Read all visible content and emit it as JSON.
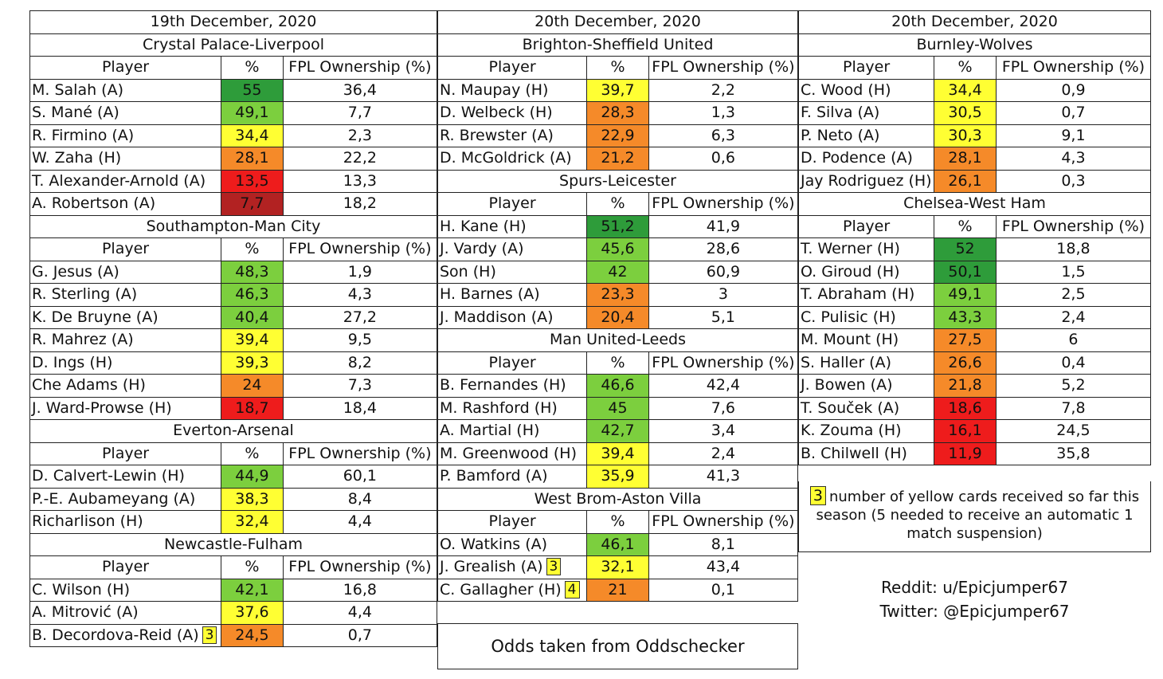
{
  "colors": {
    "dark_green": "#2e9c3a",
    "light_green": "#7ccf3e",
    "yellow": "#ffff33",
    "orange": "#f58a29",
    "red": "#ee1c1c",
    "dark_red": "#b22222"
  },
  "col_headers": {
    "player": "Player",
    "pct": "%",
    "own": "FPL Ownership (%)"
  },
  "columns": [
    {
      "id": "col1",
      "date": "19th December, 2020",
      "fixtures": [
        {
          "name": "Crystal Palace-Liverpool",
          "players": [
            {
              "name": "M. Salah (A)",
              "pct": "55",
              "own": "36,4",
              "color": "dark_green"
            },
            {
              "name": "S. Mané (A)",
              "pct": "49,1",
              "own": "7,7",
              "color": "light_green"
            },
            {
              "name": "R. Firmino (A)",
              "pct": "34,4",
              "own": "2,3",
              "color": "yellow"
            },
            {
              "name": "W. Zaha (H)",
              "pct": "28,1",
              "own": "22,2",
              "color": "orange"
            },
            {
              "name": "T. Alexander-Arnold (A)",
              "pct": "13,5",
              "own": "13,3",
              "color": "red"
            },
            {
              "name": "A. Robertson (A)",
              "pct": "7,7",
              "own": "18,2",
              "color": "dark_red"
            }
          ]
        },
        {
          "name": "Southampton-Man City",
          "players": [
            {
              "name": "G. Jesus (A)",
              "pct": "48,3",
              "own": "1,9",
              "color": "light_green"
            },
            {
              "name": "R. Sterling (A)",
              "pct": "46,3",
              "own": "4,3",
              "color": "light_green"
            },
            {
              "name": "K. De Bruyne (A)",
              "pct": "40,4",
              "own": "27,2",
              "color": "light_green"
            },
            {
              "name": "R. Mahrez (A)",
              "pct": "39,4",
              "own": "9,5",
              "color": "yellow"
            },
            {
              "name": "D. Ings (H)",
              "pct": "39,3",
              "own": "8,2",
              "color": "yellow"
            },
            {
              "name": "Che Adams (H)",
              "pct": "24",
              "own": "7,3",
              "color": "orange"
            },
            {
              "name": "J. Ward-Prowse (H)",
              "pct": "18,7",
              "own": "18,4",
              "color": "red"
            }
          ]
        },
        {
          "name": "Everton-Arsenal",
          "players": [
            {
              "name": "D. Calvert-Lewin (H)",
              "pct": "44,9",
              "own": "60,1",
              "color": "light_green"
            },
            {
              "name": "P.-E. Aubameyang (A)",
              "pct": "38,3",
              "own": "8,4",
              "color": "yellow"
            },
            {
              "name": "Richarlison (H)",
              "pct": "32,4",
              "own": "4,4",
              "color": "yellow"
            }
          ]
        },
        {
          "name": "Newcastle-Fulham",
          "players": [
            {
              "name": "C. Wilson (H)",
              "pct": "42,1",
              "own": "16,8",
              "color": "light_green"
            },
            {
              "name": "A. Mitrović (A)",
              "pct": "37,6",
              "own": "4,4",
              "color": "yellow"
            },
            {
              "name": "B. Decordova-Reid (A)",
              "badge": "3",
              "pct": "24,5",
              "own": "0,7",
              "color": "orange"
            }
          ]
        }
      ]
    },
    {
      "id": "col2",
      "date": "20th December, 2020",
      "fixtures": [
        {
          "name": "Brighton-Sheffield United",
          "players": [
            {
              "name": "N. Maupay (H)",
              "pct": "39,7",
              "own": "2,2",
              "color": "yellow"
            },
            {
              "name": "D. Welbeck (H)",
              "pct": "28,3",
              "own": "1,3",
              "color": "orange"
            },
            {
              "name": "R. Brewster (A)",
              "pct": "22,9",
              "own": "6,3",
              "color": "orange"
            },
            {
              "name": "D. McGoldrick (A)",
              "pct": "21,2",
              "own": "0,6",
              "color": "orange"
            }
          ]
        },
        {
          "name": "Spurs-Leicester",
          "players": [
            {
              "name": "H. Kane (H)",
              "pct": "51,2",
              "own": "41,9",
              "color": "dark_green"
            },
            {
              "name": "J. Vardy (A)",
              "pct": "45,6",
              "own": "28,6",
              "color": "light_green"
            },
            {
              "name": "Son (H)",
              "pct": "42",
              "own": "60,9",
              "color": "light_green"
            },
            {
              "name": "H. Barnes (A)",
              "pct": "23,3",
              "own": "3",
              "color": "orange"
            },
            {
              "name": "J. Maddison (A)",
              "pct": "20,4",
              "own": "5,1",
              "color": "orange"
            }
          ]
        },
        {
          "name": "Man United-Leeds",
          "players": [
            {
              "name": "B. Fernandes (H)",
              "pct": "46,6",
              "own": "42,4",
              "color": "light_green"
            },
            {
              "name": "M. Rashford (H)",
              "pct": "45",
              "own": "7,6",
              "color": "light_green"
            },
            {
              "name": "A. Martial (H)",
              "pct": "42,7",
              "own": "3,4",
              "color": "light_green"
            },
            {
              "name": "M. Greenwood (H)",
              "pct": "39,4",
              "own": "2,4",
              "color": "yellow"
            },
            {
              "name": "P. Bamford (A)",
              "pct": "35,9",
              "own": "41,3",
              "color": "yellow"
            }
          ]
        },
        {
          "name": "West Brom-Aston Villa",
          "players": [
            {
              "name": "O. Watkins (A)",
              "pct": "46,1",
              "own": "8,1",
              "color": "light_green"
            },
            {
              "name": "J. Grealish (A)",
              "badge": "3",
              "pct": "32,1",
              "own": "43,4",
              "color": "yellow"
            },
            {
              "name": "C. Gallagher (H)",
              "badge": "4",
              "pct": "21",
              "own": "0,1",
              "color": "orange"
            }
          ]
        }
      ]
    },
    {
      "id": "col3",
      "date": "20th December, 2020",
      "fixtures": [
        {
          "name": "Burnley-Wolves",
          "players": [
            {
              "name": "C. Wood (H)",
              "pct": "34,4",
              "own": "0,9",
              "color": "yellow"
            },
            {
              "name": "F. Silva (A)",
              "pct": "30,5",
              "own": "0,7",
              "color": "yellow"
            },
            {
              "name": "P. Neto (A)",
              "pct": "30,3",
              "own": "9,1",
              "color": "yellow"
            },
            {
              "name": "D. Podence (A)",
              "pct": "28,1",
              "own": "4,3",
              "color": "orange"
            },
            {
              "name": "Jay Rodriguez (H)",
              "pct": "26,1",
              "own": "0,3",
              "color": "orange"
            }
          ]
        },
        {
          "name": "Chelsea-West Ham",
          "players": [
            {
              "name": "T. Werner (H)",
              "pct": "52",
              "own": "18,8",
              "color": "dark_green"
            },
            {
              "name": "O. Giroud (H)",
              "pct": "50,1",
              "own": "1,5",
              "color": "dark_green"
            },
            {
              "name": "T. Abraham (H)",
              "pct": "49,1",
              "own": "2,5",
              "color": "light_green"
            },
            {
              "name": "C. Pulisic (H)",
              "pct": "43,3",
              "own": "2,4",
              "color": "light_green"
            },
            {
              "name": "M. Mount (H)",
              "pct": "27,5",
              "own": "6",
              "color": "orange"
            },
            {
              "name": "S. Haller (A)",
              "pct": "26,6",
              "own": "0,4",
              "color": "orange"
            },
            {
              "name": "J. Bowen (A)",
              "pct": "21,8",
              "own": "5,2",
              "color": "orange"
            },
            {
              "name": "T. Souček (A)",
              "pct": "18,6",
              "own": "7,8",
              "color": "red"
            },
            {
              "name": "K. Zouma (H)",
              "pct": "16,1",
              "own": "24,5",
              "color": "red"
            },
            {
              "name": "B. Chilwell (H)",
              "pct": "11,9",
              "own": "35,8",
              "color": "red"
            }
          ]
        }
      ]
    }
  ],
  "legend": {
    "badge": "3",
    "text": "number of yellow cards received so far this season (5 needed to receive an automatic 1 match suspension)"
  },
  "credits": {
    "reddit": "Reddit: u/Epicjumper67",
    "twitter": "Twitter: @Epicjumper67"
  },
  "odds_note": "Odds taken from Oddschecker"
}
